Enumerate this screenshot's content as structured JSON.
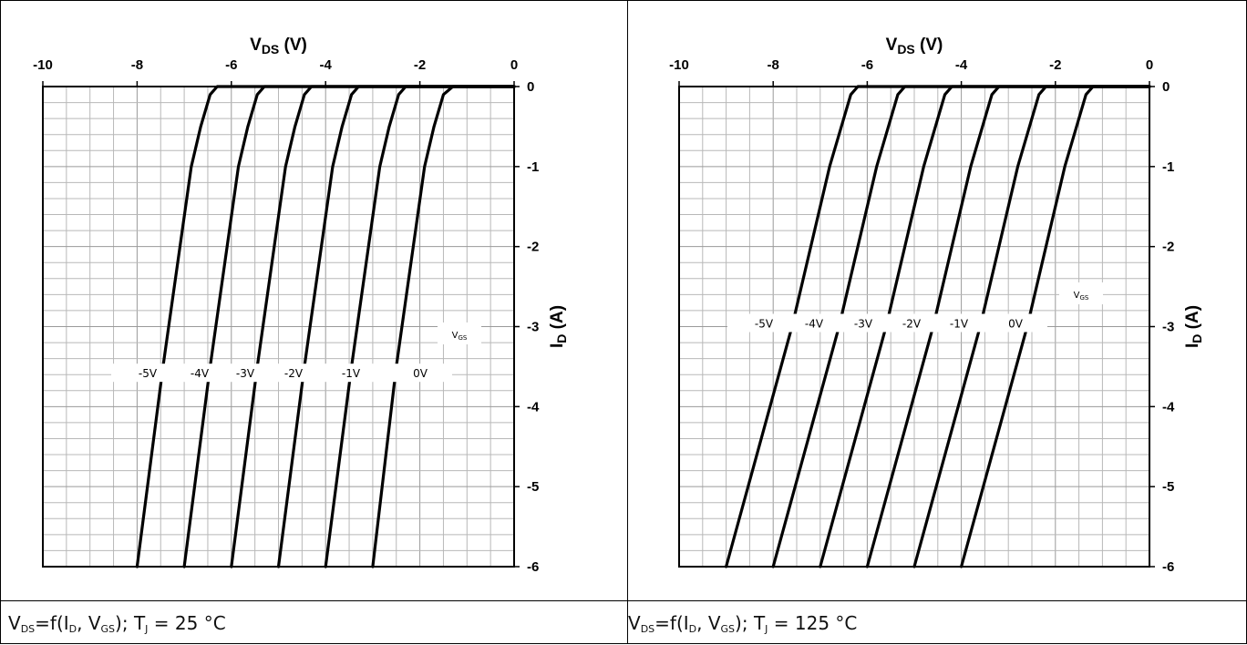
{
  "chart_data": [
    {
      "type": "line",
      "caption": "V_DS=f(I_D, V_GS); T_J = 25 °C",
      "caption_parts": {
        "v": "V",
        "v_sub": "DS",
        "mid1": "=f(I",
        "i_sub": "D",
        "mid2": ", V",
        "gs_sub": "GS",
        "mid3": "); T",
        "j_sub": "J",
        "tail": " = 25 °C"
      },
      "xlabel": "V",
      "xlabel_sub": "DS",
      "xlabel_unit": " (V)",
      "ylabel": "I",
      "ylabel_sub": "D",
      "ylabel_unit": " (A)",
      "xlim": [
        -10,
        0
      ],
      "ylim": [
        -6,
        0
      ],
      "xticks": [
        "-10",
        "-8",
        "-6",
        "-4",
        "-2",
        "0"
      ],
      "yticks": [
        "0",
        "-1",
        "-2",
        "-3",
        "-4",
        "-5",
        "-6"
      ],
      "grid": true,
      "legend_title": "V",
      "legend_title_sub": "GS",
      "series": [
        {
          "name": "-5V",
          "x": [
            -8.0,
            -7.45,
            -6.85,
            -6.65,
            -6.45,
            -6.3,
            0
          ],
          "y": [
            -6,
            -3.5,
            -1.0,
            -0.5,
            -0.1,
            0,
            0
          ]
        },
        {
          "name": "-4V",
          "x": [
            -7.0,
            -6.45,
            -5.85,
            -5.65,
            -5.45,
            -5.3,
            0
          ],
          "y": [
            -6,
            -3.5,
            -1.0,
            -0.5,
            -0.1,
            0,
            0
          ]
        },
        {
          "name": "-3V",
          "x": [
            -6.0,
            -5.45,
            -4.85,
            -4.65,
            -4.45,
            -4.3,
            0
          ],
          "y": [
            -6,
            -3.5,
            -1.0,
            -0.5,
            -0.1,
            0,
            0
          ]
        },
        {
          "name": "-2V",
          "x": [
            -5.0,
            -4.45,
            -3.85,
            -3.65,
            -3.45,
            -3.3,
            0
          ],
          "y": [
            -6,
            -3.5,
            -1.0,
            -0.5,
            -0.1,
            0,
            0
          ]
        },
        {
          "name": "-1V",
          "x": [
            -4.0,
            -3.45,
            -2.85,
            -2.65,
            -2.45,
            -2.3,
            0
          ],
          "y": [
            -6,
            -3.5,
            -1.0,
            -0.5,
            -0.1,
            0,
            0
          ]
        },
        {
          "name": "0V",
          "x": [
            -3.0,
            -2.5,
            -1.9,
            -1.7,
            -1.5,
            -1.3,
            0
          ],
          "y": [
            -6,
            -3.5,
            -1.0,
            -0.5,
            -0.1,
            0,
            0
          ]
        }
      ],
      "label_y": -3.6
    },
    {
      "type": "line",
      "caption": "V_DS=f(I_D, V_GS); T_J = 125 °C",
      "caption_parts": {
        "v": "V",
        "v_sub": "DS",
        "mid1": "=f(I",
        "i_sub": "D",
        "mid2": ", V",
        "gs_sub": "GS",
        "mid3": "); T",
        "j_sub": "J",
        "tail": " = 125 °C"
      },
      "xlabel": "V",
      "xlabel_sub": "DS",
      "xlabel_unit": " (V)",
      "ylabel": "I",
      "ylabel_sub": "D",
      "ylabel_unit": " (A)",
      "xlim": [
        -10,
        0
      ],
      "ylim": [
        -6,
        0
      ],
      "xticks": [
        "-10",
        "-8",
        "-6",
        "-4",
        "-2",
        "0"
      ],
      "yticks": [
        "0",
        "-1",
        "-2",
        "-3",
        "-4",
        "-5",
        "-6"
      ],
      "grid": true,
      "legend_title": "V",
      "legend_title_sub": "GS",
      "series": [
        {
          "name": "-5V",
          "x": [
            -9.0,
            -7.6,
            -6.8,
            -6.55,
            -6.35,
            -6.2,
            0
          ],
          "y": [
            -6,
            -3.0,
            -1.0,
            -0.5,
            -0.1,
            0,
            0
          ]
        },
        {
          "name": "-4V",
          "x": [
            -8.0,
            -6.6,
            -5.8,
            -5.55,
            -5.35,
            -5.2,
            0
          ],
          "y": [
            -6,
            -3.0,
            -1.0,
            -0.5,
            -0.1,
            0,
            0
          ]
        },
        {
          "name": "-3V",
          "x": [
            -7.0,
            -5.6,
            -4.8,
            -4.55,
            -4.35,
            -4.2,
            0
          ],
          "y": [
            -6,
            -3.0,
            -1.0,
            -0.5,
            -0.1,
            0,
            0
          ]
        },
        {
          "name": "-2V",
          "x": [
            -6.0,
            -4.6,
            -3.8,
            -3.55,
            -3.35,
            -3.2,
            0
          ],
          "y": [
            -6,
            -3.0,
            -1.0,
            -0.5,
            -0.1,
            0,
            0
          ]
        },
        {
          "name": "-1V",
          "x": [
            -5.0,
            -3.6,
            -2.8,
            -2.55,
            -2.35,
            -2.2,
            0
          ],
          "y": [
            -6,
            -3.0,
            -1.0,
            -0.5,
            -0.1,
            0,
            0
          ]
        },
        {
          "name": "0V",
          "x": [
            -4.0,
            -2.6,
            -1.8,
            -1.55,
            -1.35,
            -1.2,
            0
          ],
          "y": [
            -6,
            -3.0,
            -1.0,
            -0.5,
            -0.1,
            0,
            0
          ]
        }
      ],
      "label_y": -3.0
    }
  ]
}
